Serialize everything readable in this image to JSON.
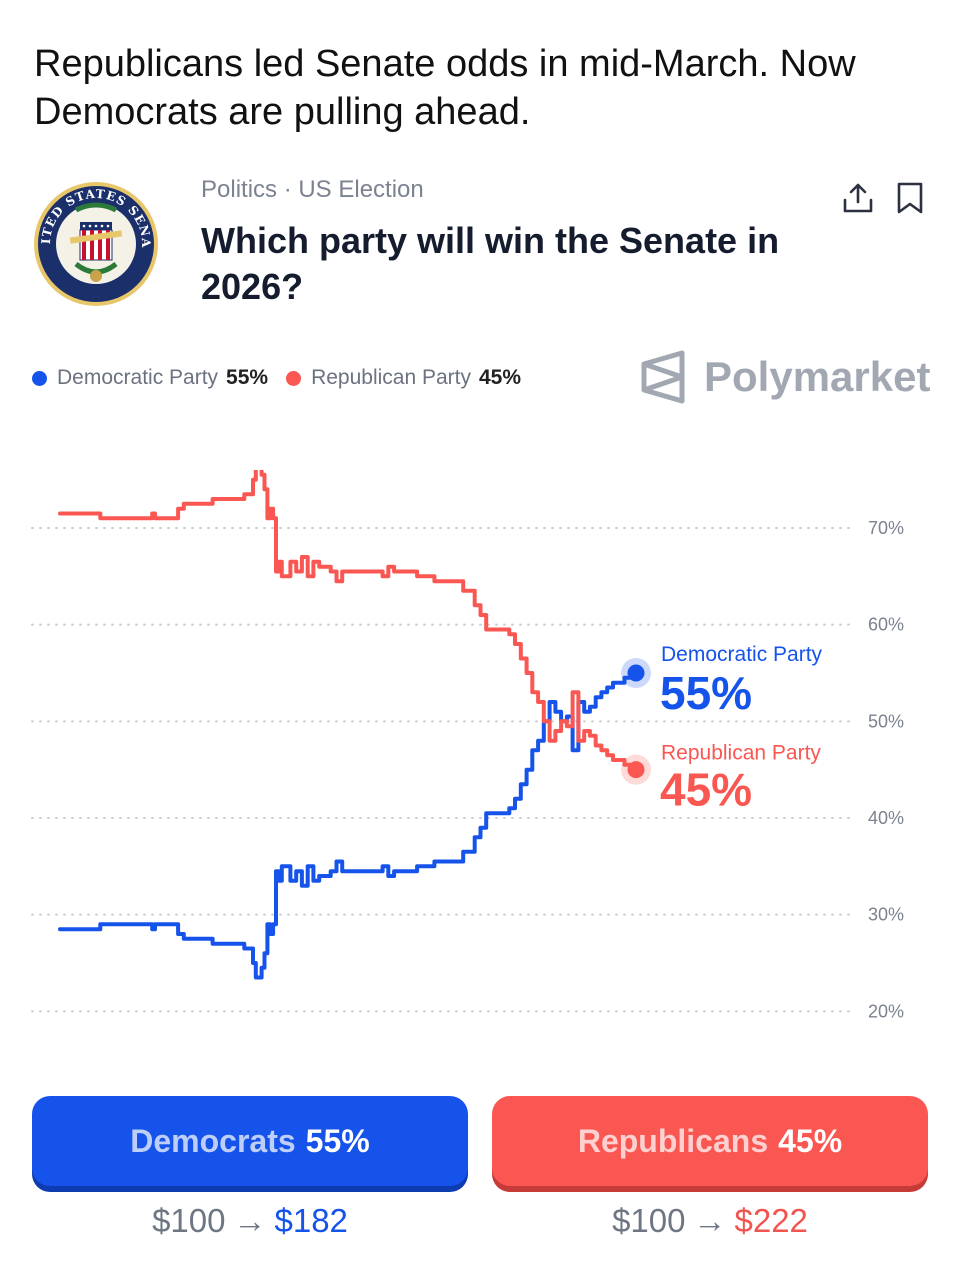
{
  "headline": "Republicans led Senate odds in mid-March. Now Democrats are pulling ahead.",
  "market": {
    "category": "Politics · US Election",
    "question": "Which party will win the Senate in 2026?",
    "seal_icon": "us-senate-seal-icon",
    "seal_text": "UNITED STATES SENATE"
  },
  "actions": {
    "share_icon": "share-icon",
    "bookmark_icon": "bookmark-icon"
  },
  "legend": [
    {
      "name": "Democratic Party",
      "value": "55%",
      "color": "#1553ea"
    },
    {
      "name": "Republican Party",
      "value": "45%",
      "color": "#fa5753"
    }
  ],
  "brand": {
    "name": "Polymarket",
    "icon": "polymarket-logo-icon"
  },
  "chart_data": {
    "type": "line",
    "title": "",
    "xlabel": "",
    "ylabel": "",
    "ylim": [
      16,
      76
    ],
    "yticks": [
      20,
      30,
      40,
      50,
      60,
      70
    ],
    "ytick_labels": [
      "20%",
      "30%",
      "40%",
      "50%",
      "60%",
      "70%"
    ],
    "grid": true,
    "x_range": [
      0,
      100
    ],
    "series": [
      {
        "name": "Democratic Party",
        "color": "#1553ea",
        "end_label": "55%",
        "x": [
          0,
          2,
          6,
          7,
          15,
          16,
          16.5,
          20,
          20.5,
          21.5,
          22,
          26,
          26.5,
          32,
          33,
          33.5,
          34,
          35,
          35.5,
          36,
          36.5,
          37,
          37.5,
          38,
          38.5,
          40,
          41,
          42,
          43,
          44,
          45,
          46,
          47,
          48,
          49,
          50,
          51,
          52,
          53,
          54,
          55,
          56,
          57,
          58,
          59,
          60,
          61,
          62,
          63,
          64,
          65,
          66,
          67,
          68,
          69,
          70,
          71,
          72,
          73,
          74,
          75,
          76,
          77,
          78,
          79,
          80,
          81,
          82,
          83,
          84,
          85,
          86,
          87,
          88,
          89,
          90,
          91,
          92,
          93,
          94,
          95,
          96,
          97,
          98,
          99,
          100
        ],
        "y": [
          28.5,
          28.5,
          28.5,
          29,
          29,
          28.5,
          29,
          29,
          28,
          27.5,
          27.5,
          27.5,
          27,
          26.5,
          26.5,
          25,
          23.5,
          24.5,
          26,
          29,
          28,
          29,
          34.5,
          33.5,
          35,
          33.5,
          34.5,
          33,
          35,
          33.5,
          34,
          34,
          34.5,
          35.5,
          34.5,
          34.5,
          34.5,
          34.5,
          34.5,
          34.5,
          34.5,
          35,
          34,
          34.5,
          34.5,
          34.5,
          34.5,
          35,
          35,
          35,
          35.5,
          35.5,
          35.5,
          35.5,
          35.5,
          36.5,
          36.5,
          38,
          39,
          40.5,
          40.5,
          40.5,
          40.5,
          41,
          42,
          43.5,
          45,
          47,
          48,
          50,
          52,
          51,
          50,
          50.5,
          47,
          52,
          51,
          51.5,
          52.5,
          53,
          53.5,
          54,
          54,
          54.5,
          54.7,
          55
        ]
      },
      {
        "name": "Republican Party",
        "color": "#fa5753",
        "end_label": "45%",
        "x": [
          0,
          2,
          6,
          7,
          15,
          16,
          16.5,
          20,
          20.5,
          21.5,
          22,
          26,
          26.5,
          32,
          33,
          33.5,
          34,
          35,
          35.5,
          36,
          36.5,
          37,
          37.5,
          38,
          38.5,
          40,
          41,
          42,
          43,
          44,
          45,
          46,
          47,
          48,
          49,
          50,
          51,
          52,
          53,
          54,
          55,
          56,
          57,
          58,
          59,
          60,
          61,
          62,
          63,
          64,
          65,
          66,
          67,
          68,
          69,
          70,
          71,
          72,
          73,
          74,
          75,
          76,
          77,
          78,
          79,
          80,
          81,
          82,
          83,
          84,
          85,
          86,
          87,
          88,
          89,
          90,
          91,
          92,
          93,
          94,
          95,
          96,
          97,
          98,
          99,
          100
        ],
        "y": [
          71.5,
          71.5,
          71.5,
          71,
          71,
          71.5,
          71,
          71,
          72,
          72.5,
          72.5,
          72.5,
          73,
          73.5,
          73.5,
          75,
          76.5,
          75.5,
          74,
          71,
          72,
          71,
          65.5,
          66.5,
          65,
          66.5,
          65.5,
          67,
          65,
          66.5,
          66,
          66,
          65.5,
          64.5,
          65.5,
          65.5,
          65.5,
          65.5,
          65.5,
          65.5,
          65.5,
          65,
          66,
          65.5,
          65.5,
          65.5,
          65.5,
          65,
          65,
          65,
          64.5,
          64.5,
          64.5,
          64.5,
          64.5,
          63.5,
          63.5,
          62,
          61,
          59.5,
          59.5,
          59.5,
          59.5,
          59,
          58,
          56.5,
          55,
          53,
          52,
          50,
          48,
          49,
          50,
          49.5,
          53,
          48,
          49,
          48.5,
          47.5,
          47,
          46.5,
          46,
          46,
          45.5,
          45.3,
          45
        ]
      }
    ]
  },
  "buttons": [
    {
      "label": "Democrats",
      "pct": "55%",
      "from": "$100",
      "arrow": "→",
      "to": "$182"
    },
    {
      "label": "Republicans",
      "pct": "45%",
      "from": "$100",
      "arrow": "→",
      "to": "$222"
    }
  ]
}
